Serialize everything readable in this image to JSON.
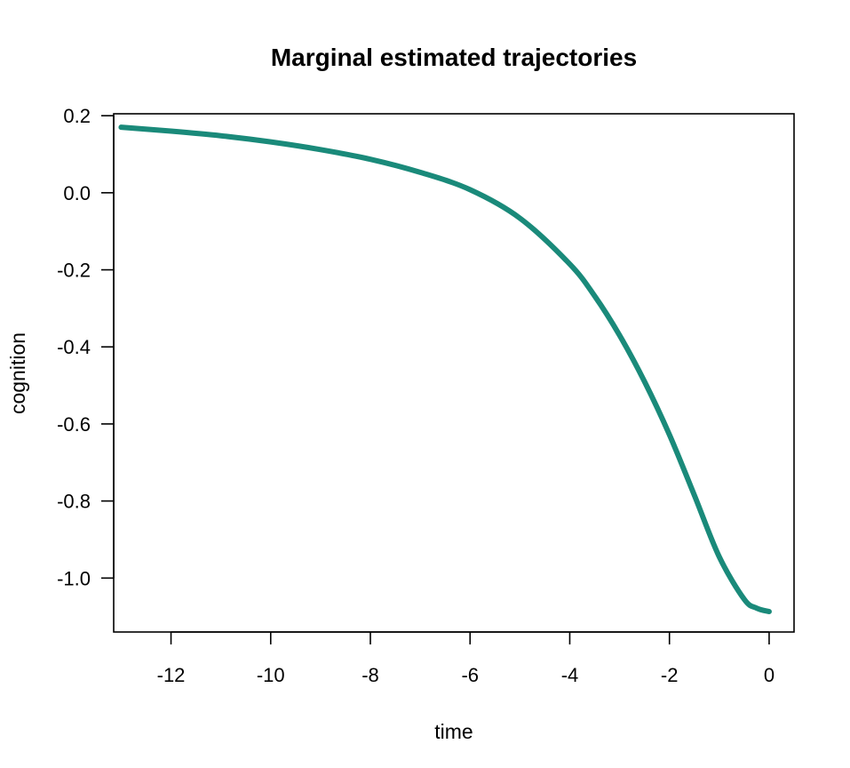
{
  "chart_data": {
    "type": "line",
    "title": "Marginal estimated trajectories",
    "xlabel": "time",
    "ylabel": "cognition",
    "xlim": [
      -13.15,
      0.5
    ],
    "ylim": [
      -1.14,
      0.205
    ],
    "x_ticks": [
      -12,
      -10,
      -8,
      -6,
      -4,
      -2,
      0
    ],
    "y_ticks": [
      0.2,
      0.0,
      -0.2,
      -0.4,
      -0.6,
      -0.8,
      -1.0
    ],
    "x_tick_labels": [
      "-12",
      "-10",
      "-8",
      "-6",
      "-4",
      "-2",
      "0"
    ],
    "y_tick_labels": [
      "0.2",
      "0.0",
      "-0.2",
      "-0.4",
      "-0.6",
      "-0.8",
      "-1.0"
    ],
    "grid": false,
    "legend": "none",
    "colors": {
      "line": "#1a8a7a",
      "axis": "#000000"
    },
    "series": [
      {
        "x": [
          -13,
          -12,
          -11,
          -10,
          -9,
          -8,
          -7,
          -6,
          -5,
          -4,
          -3.5,
          -3,
          -2.5,
          -2,
          -1.5,
          -1,
          -0.5,
          -0.25,
          0
        ],
        "y": [
          0.17,
          0.16,
          0.148,
          0.132,
          0.112,
          0.087,
          0.053,
          0.008,
          -0.066,
          -0.185,
          -0.268,
          -0.37,
          -0.49,
          -0.628,
          -0.785,
          -0.945,
          -1.055,
          -1.078,
          -1.087
        ]
      }
    ]
  }
}
